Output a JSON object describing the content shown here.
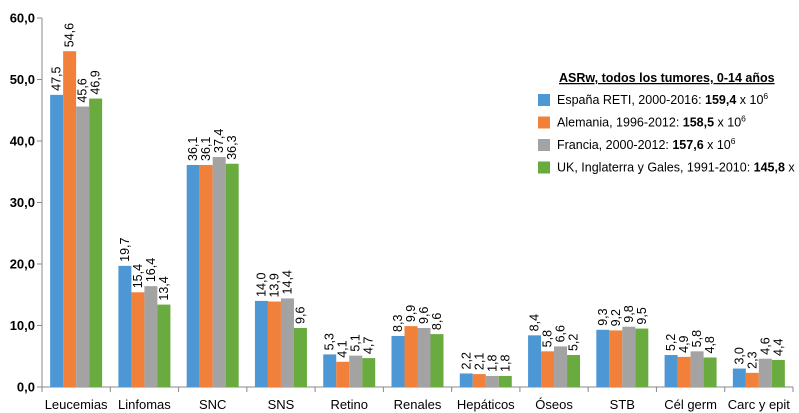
{
  "chart_data": {
    "type": "bar",
    "categories": [
      "Leucemias",
      "Linfomas",
      "SNC",
      "SNS",
      "Retino",
      "Renales",
      "Hepáticos",
      "Óseos",
      "STB",
      "Cél germ",
      "Carc y epit"
    ],
    "series": [
      {
        "name": "España RETI, 2000-2016",
        "legend_bold": "159,4",
        "values": [
          47.5,
          19.7,
          36.1,
          14.0,
          5.3,
          8.3,
          2.2,
          8.4,
          9.3,
          5.2,
          3.0
        ],
        "labels": [
          "47,5",
          "19,7",
          "36,1",
          "14,0",
          "5,3",
          "8,3",
          "2,2",
          "8,4",
          "9,3",
          "5,2",
          "3,0"
        ],
        "color": "#4e97d5"
      },
      {
        "name": "Alemania, 1996-2012",
        "legend_bold": "158,5",
        "values": [
          54.6,
          15.4,
          36.1,
          13.9,
          4.1,
          9.9,
          2.1,
          5.8,
          9.2,
          4.9,
          2.3
        ],
        "labels": [
          "54,6",
          "15,4",
          "36,1",
          "13,9",
          "4,1",
          "9,9",
          "2,1",
          "5,8",
          "9,2",
          "4,9",
          "2,3"
        ],
        "color": "#f0803a"
      },
      {
        "name": "Francia, 2000-2012",
        "legend_bold": "157,6",
        "values": [
          45.6,
          16.4,
          37.4,
          14.4,
          5.1,
          9.6,
          1.8,
          6.6,
          9.8,
          5.8,
          4.6
        ],
        "labels": [
          "45,6",
          "16,4",
          "37,4",
          "14,4",
          "5,1",
          "9,6",
          "1,8",
          "6,6",
          "9,8",
          "5,8",
          "4,6"
        ],
        "color": "#a3a3a3"
      },
      {
        "name": "UK, Inglaterra y Gales, 1991-2010",
        "legend_bold": "145,8",
        "values": [
          46.9,
          13.4,
          36.3,
          9.6,
          4.7,
          8.6,
          1.8,
          5.2,
          9.5,
          4.8,
          4.4
        ],
        "labels": [
          "46,9",
          "13,4",
          "36,3",
          "9,6",
          "4,7",
          "8,6",
          "1,8",
          "5,2",
          "9,5",
          "4,8",
          "4,4"
        ],
        "color": "#6aab3f"
      }
    ],
    "legend_title": "ASRw, todos los tumores, 0-14 años",
    "legend_suffix": " x 10",
    "legend_exponent": "6",
    "ylim": [
      0,
      60
    ],
    "yticks": [
      0,
      10,
      20,
      30,
      40,
      50,
      60
    ],
    "ytick_labels": [
      "0,0",
      "10,0",
      "20,0",
      "30,0",
      "40,0",
      "50,0",
      "60,0"
    ],
    "grid": false,
    "legend_position": "top-right"
  }
}
